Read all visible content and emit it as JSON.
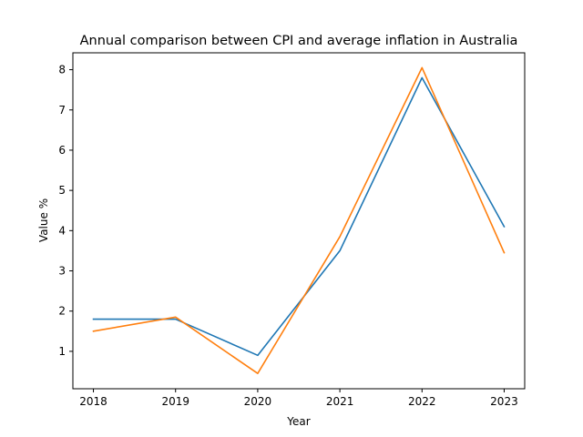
{
  "chart_data": {
    "type": "line",
    "title": "Annual comparison between CPI and average inflation in Australia",
    "xlabel": "Year",
    "ylabel": "Value %",
    "x": [
      2018,
      2019,
      2020,
      2021,
      2022,
      2023
    ],
    "xlim": [
      2017.75,
      2023.25
    ],
    "ylim": [
      0.07,
      8.42
    ],
    "xticks": [
      "2018",
      "2019",
      "2020",
      "2021",
      "2022",
      "2023"
    ],
    "yticks": [
      "1",
      "2",
      "3",
      "4",
      "5",
      "6",
      "7",
      "8"
    ],
    "grid": false,
    "series": [
      {
        "color": "#1f77b4",
        "values": [
          1.8,
          1.8,
          0.9,
          3.5,
          7.8,
          4.1
        ]
      },
      {
        "color": "#ff7f0e",
        "values": [
          1.5,
          1.85,
          0.45,
          3.85,
          8.05,
          3.45
        ]
      }
    ]
  }
}
